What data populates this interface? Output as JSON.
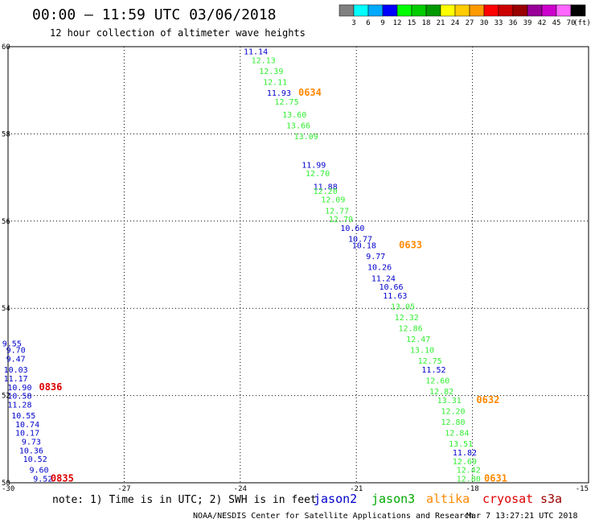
{
  "header": {
    "title": "00:00 – 11:59 UTC 03/06/2018",
    "subtitle": "12 hour collection of altimeter wave heights"
  },
  "color_scale": {
    "colors": [
      "#808080",
      "#00ffff",
      "#00aaff",
      "#0000ff",
      "#00ff00",
      "#00cc00",
      "#009900",
      "#ffff00",
      "#ffcc00",
      "#ff9900",
      "#ff0000",
      "#cc0000",
      "#990000",
      "#990099",
      "#cc00cc",
      "#ff66ff",
      "#000000"
    ],
    "labels": [
      "3",
      "6",
      "9",
      "12",
      "15",
      "18",
      "21",
      "24",
      "27",
      "30",
      "33",
      "36",
      "39",
      "42",
      "45",
      "70"
    ],
    "unit": "(ft)"
  },
  "chart_data": {
    "type": "scatter",
    "xlim": [
      -30,
      -15
    ],
    "ylim": [
      50,
      60
    ],
    "x_ticks": [
      "-30",
      "-27",
      "-24",
      "-21",
      "-18",
      "-15"
    ],
    "y_ticks": [
      "50",
      "52",
      "54",
      "56",
      "58",
      "60"
    ],
    "grid": true,
    "series": [
      {
        "name": "jason2",
        "color": "#0000cc",
        "points": [
          {
            "x": -23.6,
            "y": 59.9,
            "v": "11.14"
          },
          {
            "x": -23.0,
            "y": 58.95,
            "v": "11.93"
          },
          {
            "x": -22.1,
            "y": 57.3,
            "v": "11.99"
          },
          {
            "x": -21.8,
            "y": 56.8,
            "v": "11.88"
          },
          {
            "x": -21.1,
            "y": 55.85,
            "v": "10.60"
          },
          {
            "x": -20.9,
            "y": 55.6,
            "v": "10.77"
          },
          {
            "x": -20.8,
            "y": 55.45,
            "v": "10.18"
          },
          {
            "x": -20.5,
            "y": 55.2,
            "v": "9.77"
          },
          {
            "x": -20.4,
            "y": 54.95,
            "v": "10.26"
          },
          {
            "x": -20.3,
            "y": 54.7,
            "v": "11.24"
          },
          {
            "x": -20.1,
            "y": 54.5,
            "v": "10.66"
          },
          {
            "x": -20.0,
            "y": 54.3,
            "v": "11.63"
          },
          {
            "x": -19.0,
            "y": 52.6,
            "v": "11.52"
          },
          {
            "x": -18.2,
            "y": 50.7,
            "v": "11.82"
          },
          {
            "x": -29.9,
            "y": 53.2,
            "v": "9.55"
          },
          {
            "x": -29.8,
            "y": 53.05,
            "v": "9.70"
          },
          {
            "x": -29.8,
            "y": 52.85,
            "v": "9.47"
          },
          {
            "x": -29.8,
            "y": 52.6,
            "v": "10.03"
          },
          {
            "x": -29.8,
            "y": 52.4,
            "v": "11.17"
          },
          {
            "x": -29.7,
            "y": 52.2,
            "v": "10.90"
          },
          {
            "x": -29.7,
            "y": 52.0,
            "v": "10.58"
          },
          {
            "x": -29.7,
            "y": 51.8,
            "v": "11.28"
          },
          {
            "x": -29.6,
            "y": 51.55,
            "v": "10.55"
          },
          {
            "x": -29.5,
            "y": 51.35,
            "v": "10.74"
          },
          {
            "x": -29.5,
            "y": 51.15,
            "v": "10.17"
          },
          {
            "x": -29.4,
            "y": 50.95,
            "v": "9.73"
          },
          {
            "x": -29.4,
            "y": 50.75,
            "v": "10.36"
          },
          {
            "x": -29.3,
            "y": 50.55,
            "v": "10.52"
          },
          {
            "x": -29.2,
            "y": 50.3,
            "v": "9.60"
          },
          {
            "x": -29.1,
            "y": 50.1,
            "v": "9.52"
          }
        ]
      },
      {
        "name": "jason3",
        "color": "#33ee33",
        "points": [
          {
            "x": -23.4,
            "y": 59.7,
            "v": "12.13"
          },
          {
            "x": -23.2,
            "y": 59.45,
            "v": "12.39"
          },
          {
            "x": -23.1,
            "y": 59.2,
            "v": "12.11"
          },
          {
            "x": -22.8,
            "y": 58.75,
            "v": "12.75"
          },
          {
            "x": -22.6,
            "y": 58.45,
            "v": "13.60"
          },
          {
            "x": -22.5,
            "y": 58.2,
            "v": "13.66"
          },
          {
            "x": -22.3,
            "y": 57.95,
            "v": "13.09"
          },
          {
            "x": -22.0,
            "y": 57.1,
            "v": "12.70"
          },
          {
            "x": -21.8,
            "y": 56.7,
            "v": "12.20"
          },
          {
            "x": -21.6,
            "y": 56.5,
            "v": "12.09"
          },
          {
            "x": -21.5,
            "y": 56.25,
            "v": "12.77"
          },
          {
            "x": -21.4,
            "y": 56.05,
            "v": "12.79"
          },
          {
            "x": -19.8,
            "y": 54.05,
            "v": "13.05"
          },
          {
            "x": -19.7,
            "y": 53.8,
            "v": "12.32"
          },
          {
            "x": -19.6,
            "y": 53.55,
            "v": "12.86"
          },
          {
            "x": -19.4,
            "y": 53.3,
            "v": "12.47"
          },
          {
            "x": -19.3,
            "y": 53.05,
            "v": "13.10"
          },
          {
            "x": -19.1,
            "y": 52.8,
            "v": "12.75"
          },
          {
            "x": -18.9,
            "y": 52.35,
            "v": "12.60"
          },
          {
            "x": -18.8,
            "y": 52.1,
            "v": "12.82"
          },
          {
            "x": -18.6,
            "y": 51.9,
            "v": "13.31"
          },
          {
            "x": -18.5,
            "y": 51.65,
            "v": "12.20"
          },
          {
            "x": -18.5,
            "y": 51.4,
            "v": "12.80"
          },
          {
            "x": -18.4,
            "y": 51.15,
            "v": "12.84"
          },
          {
            "x": -18.3,
            "y": 50.9,
            "v": "13.51"
          },
          {
            "x": -18.2,
            "y": 50.5,
            "v": "12.69"
          },
          {
            "x": -18.1,
            "y": 50.3,
            "v": "12.42"
          },
          {
            "x": -18.1,
            "y": 50.1,
            "v": "12.80"
          }
        ]
      }
    ],
    "pass_labels": [
      {
        "text": "0634",
        "color": "#ff8800",
        "x": -22.2,
        "y": 58.95
      },
      {
        "text": "0633",
        "color": "#ff8800",
        "x": -19.6,
        "y": 55.45
      },
      {
        "text": "0632",
        "color": "#ff8800",
        "x": -17.6,
        "y": 51.9
      },
      {
        "text": "0631",
        "color": "#ff8800",
        "x": -17.4,
        "y": 50.1
      },
      {
        "text": "0836",
        "color": "#dd0000",
        "x": -28.9,
        "y": 52.2
      },
      {
        "text": "0835",
        "color": "#dd0000",
        "x": -28.6,
        "y": 50.1
      }
    ]
  },
  "footer": {
    "note": "note: 1) Time is in UTC; 2) SWH is in feet",
    "satellites": [
      {
        "name": "jason2",
        "color": "#0000cc"
      },
      {
        "name": "jason3",
        "color": "#00aa00"
      },
      {
        "name": "altika",
        "color": "#ff8800"
      },
      {
        "name": "cryosat",
        "color": "#dd0000"
      },
      {
        "name": "s3a",
        "color": "#990000"
      }
    ],
    "credit": "NOAA/NESDIS Center for Satellite Applications and Research",
    "timestamp": "Mar  7 13:27:21 UTC 2018"
  }
}
